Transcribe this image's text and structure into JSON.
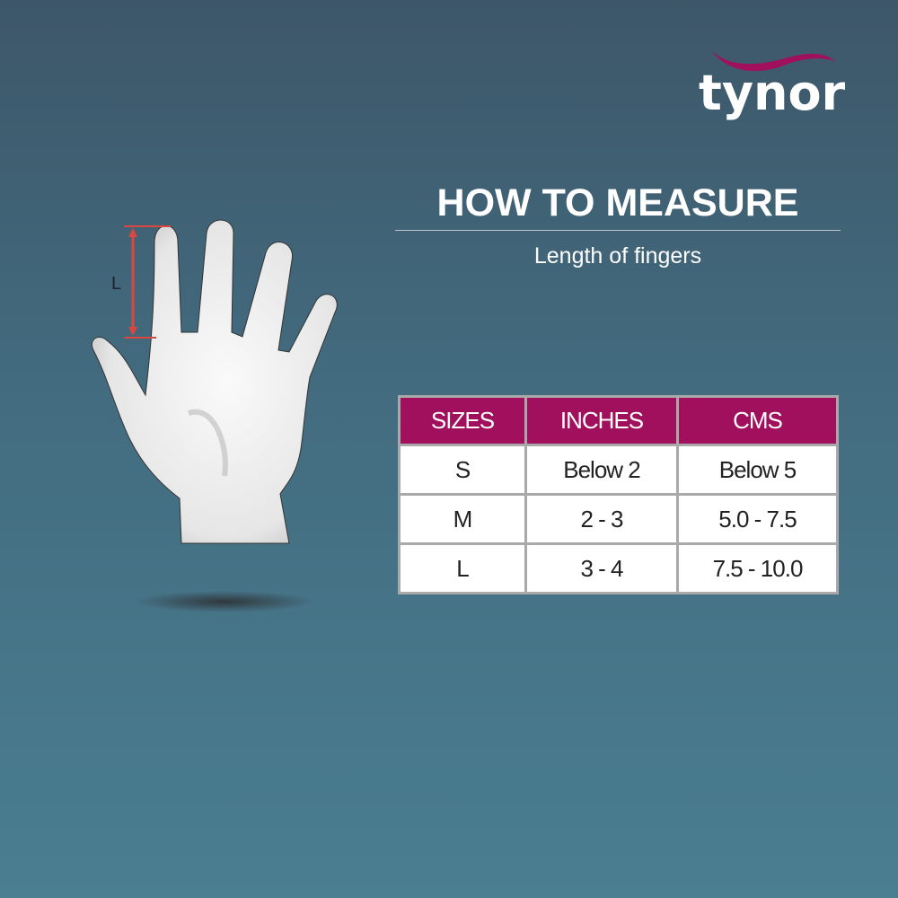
{
  "brand": {
    "name": "tynor",
    "accent_color": "#a1105c"
  },
  "heading": {
    "title": "HOW TO MEASURE",
    "subtitle": "Length of fingers"
  },
  "illustration": {
    "measure_label": "L",
    "icon": "hand-illustration",
    "arrow_color": "#d9473f"
  },
  "size_table": {
    "headers": [
      "SIZES",
      "INCHES",
      "CMS"
    ],
    "rows": [
      [
        "S",
        "Below 2",
        "Below 5"
      ],
      [
        "M",
        "2 - 3",
        "5.0 - 7.5"
      ],
      [
        "L",
        "3 - 4",
        "7.5 - 10.0"
      ]
    ]
  }
}
